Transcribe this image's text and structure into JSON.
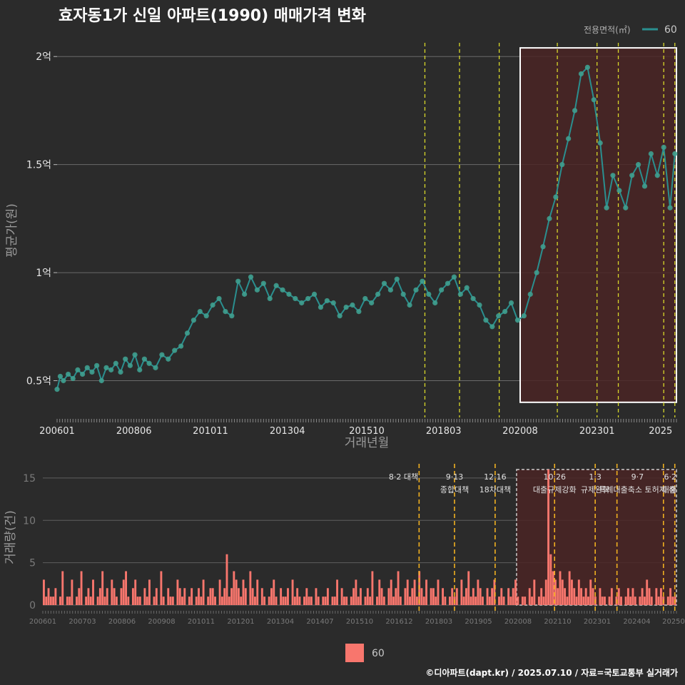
{
  "title": "효자동1가 신일 아파트(1990) 매매가격 변화",
  "footer": "©디아파트(dapt.kr) / 2025.07.10 / 자료=국토교통부 실거래가",
  "colors": {
    "background": "#2b2b2b",
    "price_line": "#2a8f8f",
    "price_point": "#3f9e8f",
    "bar": "#f8766d",
    "event_line_top": "#d8d82a",
    "event_line_bottom": "#f0b020",
    "highlight_fill": "#4a2424",
    "highlight_border": "#ffffff",
    "marker": "#e02020"
  },
  "legend_top": {
    "title": "전용면적(㎡)",
    "label": "60"
  },
  "legend_bottom": {
    "label": "60"
  },
  "chart_data": [
    {
      "type": "line",
      "name": "price",
      "xlabel": "거래년월",
      "ylabel": "평균가(원)",
      "x_tick_labels": [
        "200601",
        "200806",
        "201011",
        "201304",
        "201510",
        "201803",
        "202008",
        "202301",
        "2025"
      ],
      "x_tick_positions": [
        2006.0,
        2008.42,
        2010.83,
        2013.25,
        2015.75,
        2018.17,
        2020.58,
        2023.0,
        2025.0
      ],
      "y_tick_labels": [
        "0.5억",
        "1억",
        "1.5억",
        "2억"
      ],
      "y_tick_values": [
        0.5,
        1.0,
        1.5,
        2.0
      ],
      "ylim": [
        0.33,
        2.08
      ],
      "xlim": [
        2006.0,
        2025.5
      ],
      "grid": true,
      "event_lines_x": [
        2017.58,
        2018.67,
        2019.92,
        2021.75,
        2023.0,
        2023.67,
        2025.1,
        2025.45
      ],
      "highlight_x": [
        2020.58,
        2025.5
      ],
      "highlight_y": [
        0.4,
        2.04
      ],
      "series": [
        {
          "name": "60",
          "x": [
            2006.0,
            2006.1,
            2006.2,
            2006.35,
            2006.5,
            2006.65,
            2006.8,
            2006.95,
            2007.1,
            2007.25,
            2007.4,
            2007.55,
            2007.7,
            2007.85,
            2008.0,
            2008.15,
            2008.3,
            2008.45,
            2008.6,
            2008.75,
            2008.9,
            2009.1,
            2009.3,
            2009.5,
            2009.7,
            2009.9,
            2010.1,
            2010.3,
            2010.5,
            2010.7,
            2010.9,
            2011.1,
            2011.3,
            2011.5,
            2011.7,
            2011.9,
            2012.1,
            2012.3,
            2012.5,
            2012.7,
            2012.9,
            2013.1,
            2013.3,
            2013.5,
            2013.7,
            2013.9,
            2014.1,
            2014.3,
            2014.5,
            2014.7,
            2014.9,
            2015.1,
            2015.3,
            2015.5,
            2015.7,
            2015.9,
            2016.1,
            2016.3,
            2016.5,
            2016.7,
            2016.9,
            2017.1,
            2017.3,
            2017.5,
            2017.7,
            2017.9,
            2018.1,
            2018.3,
            2018.5,
            2018.7,
            2018.9,
            2019.1,
            2019.3,
            2019.5,
            2019.7,
            2019.9,
            2020.1,
            2020.3,
            2020.5,
            2020.7,
            2020.9,
            2021.1,
            2021.3,
            2021.5,
            2021.7,
            2021.9,
            2022.1,
            2022.3,
            2022.5,
            2022.7,
            2022.9,
            2023.1,
            2023.3,
            2023.5,
            2023.7,
            2023.9,
            2024.1,
            2024.3,
            2024.5,
            2024.7,
            2024.9,
            2025.1,
            2025.3,
            2025.45
          ],
          "values": [
            0.46,
            0.52,
            0.5,
            0.53,
            0.51,
            0.55,
            0.53,
            0.56,
            0.54,
            0.57,
            0.5,
            0.56,
            0.55,
            0.58,
            0.54,
            0.6,
            0.57,
            0.62,
            0.55,
            0.6,
            0.58,
            0.56,
            0.62,
            0.6,
            0.64,
            0.66,
            0.72,
            0.78,
            0.82,
            0.8,
            0.85,
            0.88,
            0.82,
            0.8,
            0.96,
            0.9,
            0.98,
            0.92,
            0.95,
            0.88,
            0.94,
            0.92,
            0.9,
            0.88,
            0.86,
            0.88,
            0.9,
            0.84,
            0.87,
            0.86,
            0.8,
            0.84,
            0.85,
            0.82,
            0.88,
            0.86,
            0.9,
            0.95,
            0.92,
            0.97,
            0.9,
            0.85,
            0.92,
            0.96,
            0.9,
            0.86,
            0.92,
            0.95,
            0.98,
            0.9,
            0.93,
            0.88,
            0.85,
            0.78,
            0.75,
            0.8,
            0.82,
            0.86,
            0.78,
            0.8,
            0.9,
            1.0,
            1.12,
            1.25,
            1.35,
            1.5,
            1.62,
            1.75,
            1.92,
            1.95,
            1.8,
            1.6,
            1.3,
            1.45,
            1.38,
            1.3,
            1.45,
            1.5,
            1.4,
            1.55,
            1.45,
            1.58,
            1.3,
            1.55
          ]
        }
      ]
    },
    {
      "type": "bar",
      "name": "volume",
      "ylabel": "거래량(건)",
      "x_tick_labels": [
        "200601",
        "200703",
        "200806",
        "200908",
        "201011",
        "201201",
        "201304",
        "201407",
        "201510",
        "201612",
        "201803",
        "201905",
        "202008",
        "202110",
        "202301",
        "202404",
        "20250"
      ],
      "y_tick_labels": [
        "0",
        "5",
        "10",
        "15"
      ],
      "y_tick_values": [
        0,
        5,
        10,
        15
      ],
      "ylim": [
        0,
        16
      ],
      "xlim": [
        2006.0,
        2025.5
      ],
      "event_lines_x": [
        2017.58,
        2018.67,
        2019.92,
        2021.75,
        2023.0,
        2023.67,
        2025.1,
        2025.45
      ],
      "event_labels": [
        {
          "date": "8·2 대책",
          "text": ""
        },
        {
          "date": "9·13",
          "text": "종합대책"
        },
        {
          "date": "12·16",
          "text": "18차대책"
        },
        {
          "date": "10·26",
          "text": "대출규제강화"
        },
        {
          "date": "1·3",
          "text": "규제완화"
        },
        {
          "date": "9·7",
          "text": "특례대출축소 토허제 해"
        },
        {
          "date": "6·2",
          "text": "대출"
        }
      ],
      "highlight_x": [
        2020.58,
        2025.5
      ],
      "values": [
        3,
        1,
        2,
        1,
        1,
        2,
        0,
        1,
        4,
        0,
        1,
        1,
        3,
        0,
        1,
        2,
        4,
        0,
        1,
        2,
        1,
        3,
        0,
        1,
        2,
        4,
        1,
        2,
        0,
        3,
        2,
        1,
        0,
        2,
        3,
        4,
        1,
        0,
        2,
        3,
        1,
        1,
        0,
        2,
        1,
        3,
        0,
        1,
        2,
        0,
        4,
        1,
        0,
        2,
        1,
        1,
        0,
        3,
        2,
        1,
        2,
        0,
        1,
        2,
        0,
        1,
        2,
        1,
        3,
        0,
        1,
        2,
        2,
        1,
        0,
        3,
        1,
        2,
        6,
        1,
        2,
        4,
        3,
        2,
        1,
        3,
        2,
        0,
        4,
        2,
        1,
        3,
        0,
        2,
        1,
        0,
        1,
        2,
        3,
        1,
        0,
        2,
        1,
        1,
        2,
        0,
        3,
        1,
        2,
        1,
        0,
        1,
        2,
        1,
        1,
        0,
        2,
        1,
        0,
        1,
        1,
        2,
        0,
        1,
        1,
        3,
        0,
        2,
        1,
        1,
        0,
        1,
        2,
        3,
        1,
        2,
        0,
        1,
        2,
        1,
        4,
        0,
        1,
        3,
        2,
        1,
        0,
        2,
        3,
        1,
        2,
        4,
        1,
        0,
        2,
        3,
        1,
        2,
        3,
        1,
        4,
        2,
        1,
        3,
        0,
        2,
        2,
        1,
        3,
        0,
        2,
        1,
        0,
        1,
        2,
        1,
        2,
        0,
        3,
        1,
        2,
        4,
        1,
        2,
        1,
        3,
        2,
        1,
        0,
        2,
        1,
        2,
        3,
        0,
        1,
        2,
        1,
        0,
        2,
        1,
        2,
        3,
        1,
        0,
        1,
        1,
        0,
        2,
        1,
        3,
        0,
        1,
        2,
        1,
        3,
        16,
        6,
        4,
        3,
        2,
        4,
        3,
        2,
        1,
        4,
        3,
        2,
        1,
        3,
        2,
        1,
        2,
        1,
        3,
        2,
        1,
        0,
        2,
        1,
        1,
        0,
        1,
        2,
        0,
        1,
        2,
        1,
        0,
        1,
        2,
        1,
        2,
        1,
        0,
        1,
        2,
        1,
        3,
        2,
        1,
        0,
        2,
        1,
        2,
        1,
        0,
        1,
        2,
        1,
        1
      ]
    }
  ]
}
